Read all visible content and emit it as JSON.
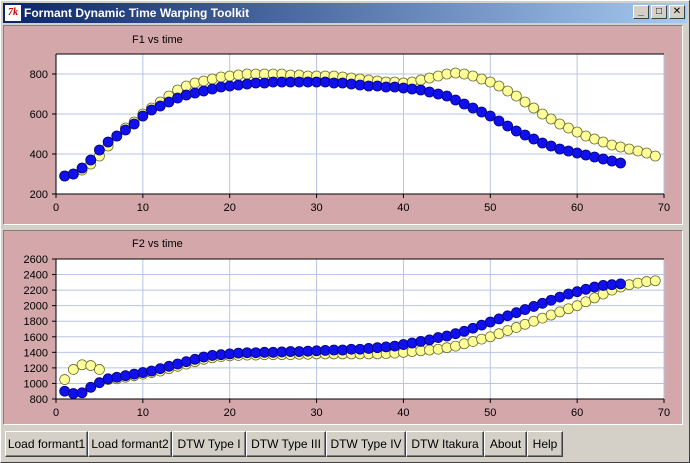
{
  "window": {
    "title": "Formant Dynamic Time Warping Toolkit",
    "icon": "tk-feather-icon"
  },
  "window_controls": {
    "minimize": "_",
    "maximize": "□",
    "close": "✕"
  },
  "colors": {
    "panel_bg": "#d4a8aa",
    "plot_bg": "#ffffff",
    "grid": "#b8c4e8",
    "series_yellow": "#ffff99",
    "series_blue": "#1010ee"
  },
  "buttons": [
    "Load formant1",
    "Load formant2",
    "DTW Type I",
    "DTW Type III",
    "DTW Type IV",
    "DTW Itakura",
    "About",
    "Help"
  ],
  "chart_data": [
    {
      "type": "scatter",
      "title": "F1 vs time",
      "xlim": [
        0,
        70
      ],
      "ylim": [
        200,
        900
      ],
      "xticks": [
        0,
        10,
        20,
        30,
        40,
        50,
        60,
        70
      ],
      "yticks": [
        200,
        400,
        600,
        800
      ],
      "grid": true,
      "series": [
        {
          "color": "yellow",
          "x": [
            1,
            2,
            3,
            4,
            5,
            6,
            7,
            8,
            9,
            10,
            11,
            12,
            13,
            14,
            15,
            16,
            17,
            18,
            19,
            20,
            21,
            22,
            23,
            24,
            25,
            26,
            27,
            28,
            29,
            30,
            31,
            32,
            33,
            34,
            35,
            36,
            37,
            38,
            39,
            40,
            41,
            42,
            43,
            44,
            45,
            46,
            47,
            48,
            49,
            50,
            51,
            52,
            53,
            54,
            55,
            56,
            57,
            58,
            59,
            60,
            61,
            62,
            63,
            64,
            65,
            66,
            67,
            68,
            69
          ],
          "y": [
            290,
            300,
            320,
            350,
            390,
            440,
            490,
            530,
            560,
            600,
            630,
            660,
            690,
            720,
            740,
            755,
            765,
            775,
            785,
            790,
            795,
            800,
            800,
            800,
            800,
            800,
            795,
            795,
            790,
            790,
            790,
            790,
            785,
            780,
            775,
            770,
            765,
            760,
            760,
            755,
            760,
            770,
            780,
            790,
            800,
            805,
            800,
            790,
            775,
            760,
            740,
            715,
            690,
            660,
            630,
            600,
            575,
            550,
            530,
            510,
            490,
            475,
            460,
            445,
            435,
            425,
            415,
            405,
            390
          ]
        },
        {
          "color": "blue",
          "x": [
            1,
            2,
            3,
            4,
            5,
            6,
            7,
            8,
            9,
            10,
            11,
            12,
            13,
            14,
            15,
            16,
            17,
            18,
            19,
            20,
            21,
            22,
            23,
            24,
            25,
            26,
            27,
            28,
            29,
            30,
            31,
            32,
            33,
            34,
            35,
            36,
            37,
            38,
            39,
            40,
            41,
            42,
            43,
            44,
            45,
            46,
            47,
            48,
            49,
            50,
            51,
            52,
            53,
            54,
            55,
            56,
            57,
            58,
            59,
            60,
            61,
            62,
            63,
            64,
            65
          ],
          "y": [
            290,
            300,
            330,
            370,
            420,
            460,
            490,
            520,
            550,
            590,
            620,
            640,
            660,
            680,
            695,
            705,
            715,
            725,
            735,
            740,
            745,
            750,
            755,
            755,
            760,
            760,
            760,
            760,
            760,
            760,
            760,
            755,
            755,
            750,
            745,
            740,
            740,
            735,
            735,
            730,
            725,
            720,
            710,
            700,
            690,
            670,
            650,
            630,
            610,
            590,
            565,
            540,
            515,
            495,
            475,
            455,
            440,
            425,
            415,
            405,
            395,
            385,
            375,
            365,
            355
          ]
        }
      ]
    },
    {
      "type": "scatter",
      "title": "F2 vs time",
      "xlim": [
        0,
        70
      ],
      "ylim": [
        800,
        2600
      ],
      "xticks": [
        0,
        10,
        20,
        30,
        40,
        50,
        60,
        70
      ],
      "yticks": [
        800,
        1000,
        1200,
        1400,
        1600,
        1800,
        2000,
        2200,
        2400,
        2600
      ],
      "grid": true,
      "series": [
        {
          "color": "yellow",
          "x": [
            1,
            2,
            3,
            4,
            5,
            6,
            7,
            8,
            9,
            10,
            11,
            12,
            13,
            14,
            15,
            16,
            17,
            18,
            19,
            20,
            21,
            22,
            23,
            24,
            25,
            26,
            27,
            28,
            29,
            30,
            31,
            32,
            33,
            34,
            35,
            36,
            37,
            38,
            39,
            40,
            41,
            42,
            43,
            44,
            45,
            46,
            47,
            48,
            49,
            50,
            51,
            52,
            53,
            54,
            55,
            56,
            57,
            58,
            59,
            60,
            61,
            62,
            63,
            64,
            65,
            66,
            67,
            68,
            69
          ],
          "y": [
            1050,
            1180,
            1240,
            1230,
            1180,
            1050,
            1060,
            1080,
            1100,
            1120,
            1140,
            1160,
            1190,
            1220,
            1250,
            1280,
            1310,
            1330,
            1345,
            1355,
            1360,
            1365,
            1365,
            1370,
            1370,
            1370,
            1370,
            1375,
            1375,
            1380,
            1380,
            1380,
            1380,
            1380,
            1380,
            1380,
            1380,
            1385,
            1390,
            1400,
            1410,
            1420,
            1430,
            1440,
            1460,
            1480,
            1510,
            1540,
            1570,
            1600,
            1640,
            1680,
            1720,
            1760,
            1800,
            1840,
            1880,
            1920,
            1960,
            2000,
            2050,
            2100,
            2150,
            2200,
            2240,
            2270,
            2290,
            2310,
            2320
          ]
        },
        {
          "color": "blue",
          "x": [
            1,
            2,
            3,
            4,
            5,
            6,
            7,
            8,
            9,
            10,
            11,
            12,
            13,
            14,
            15,
            16,
            17,
            18,
            19,
            20,
            21,
            22,
            23,
            24,
            25,
            26,
            27,
            28,
            29,
            30,
            31,
            32,
            33,
            34,
            35,
            36,
            37,
            38,
            39,
            40,
            41,
            42,
            43,
            44,
            45,
            46,
            47,
            48,
            49,
            50,
            51,
            52,
            53,
            54,
            55,
            56,
            57,
            58,
            59,
            60,
            61,
            62,
            63,
            64,
            65
          ],
          "y": [
            900,
            870,
            880,
            950,
            1010,
            1060,
            1080,
            1100,
            1120,
            1140,
            1160,
            1190,
            1220,
            1250,
            1280,
            1310,
            1340,
            1360,
            1370,
            1380,
            1390,
            1395,
            1395,
            1400,
            1400,
            1405,
            1410,
            1410,
            1415,
            1420,
            1425,
            1430,
            1430,
            1440,
            1440,
            1450,
            1460,
            1470,
            1480,
            1500,
            1520,
            1540,
            1560,
            1590,
            1610,
            1640,
            1670,
            1710,
            1750,
            1790,
            1830,
            1870,
            1910,
            1950,
            1990,
            2030,
            2070,
            2110,
            2150,
            2180,
            2210,
            2240,
            2260,
            2270,
            2280
          ]
        }
      ]
    }
  ]
}
